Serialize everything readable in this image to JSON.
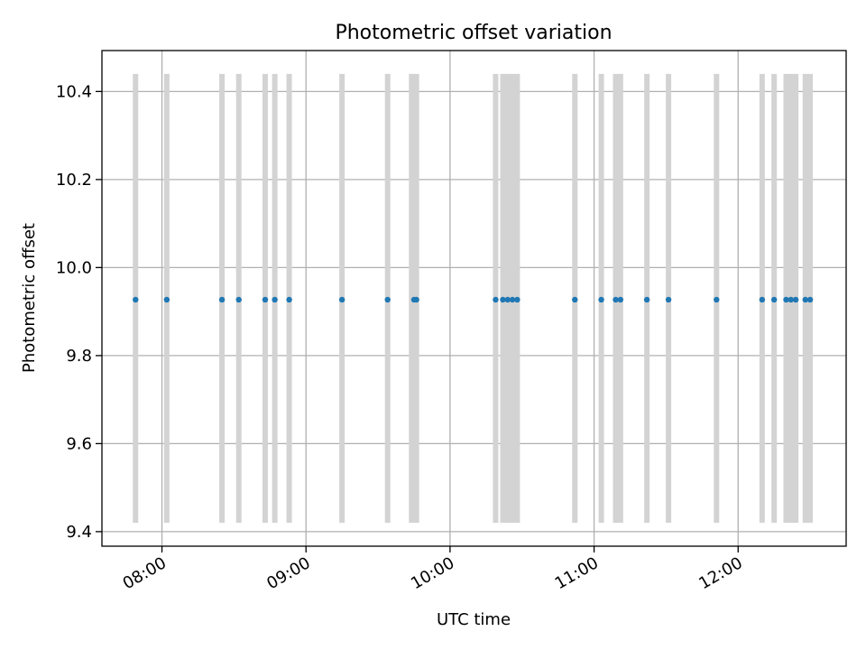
{
  "chart_data": {
    "type": "scatter",
    "title": "Photometric offset variation",
    "xlabel": "UTC time",
    "ylabel": "Photometric offset",
    "xlim": [
      "07:35",
      "12:45"
    ],
    "ylim": [
      9.367,
      10.493
    ],
    "x_ticks": [
      "08:00",
      "09:00",
      "10:00",
      "11:00",
      "12:00"
    ],
    "y_ticks": [
      9.4,
      9.6,
      9.8,
      10.0,
      10.2,
      10.4
    ],
    "y_tick_labels": [
      "9.4",
      "9.6",
      "9.8",
      "10.0",
      "10.2",
      "10.4"
    ],
    "grid": true,
    "series": [
      {
        "name": "Photometric offset",
        "color": "#1f77b4",
        "x": [
          "07:49",
          "08:02",
          "08:25",
          "08:32",
          "08:43",
          "08:47",
          "08:53",
          "09:15",
          "09:34",
          "09:45",
          "09:46",
          "10:19",
          "10:22",
          "10:24",
          "10:26",
          "10:28",
          "10:52",
          "11:03",
          "11:09",
          "11:11",
          "11:22",
          "11:31",
          "11:51",
          "12:10",
          "12:15",
          "12:20",
          "12:22",
          "12:24",
          "12:28",
          "12:30"
        ],
        "y": [
          9.927,
          9.927,
          9.927,
          9.927,
          9.927,
          9.927,
          9.927,
          9.927,
          9.927,
          9.927,
          9.927,
          9.927,
          9.927,
          9.927,
          9.927,
          9.927,
          9.927,
          9.927,
          9.927,
          9.927,
          9.927,
          9.927,
          9.927,
          9.927,
          9.927,
          9.927,
          9.927,
          9.927,
          9.927,
          9.927
        ]
      }
    ],
    "event_lines": {
      "color": "#d3d3d3",
      "y_range": [
        9.42,
        10.44
      ],
      "x": [
        "07:49",
        "08:02",
        "08:25",
        "08:32",
        "08:43",
        "08:47",
        "08:53",
        "09:15",
        "09:34",
        "09:44",
        "09:46",
        "10:19",
        "10:22",
        "10:24",
        "10:26",
        "10:28",
        "10:52",
        "11:03",
        "11:09",
        "11:11",
        "11:22",
        "11:31",
        "11:51",
        "12:10",
        "12:15",
        "12:20",
        "12:22",
        "12:24",
        "12:28",
        "12:30"
      ]
    }
  }
}
